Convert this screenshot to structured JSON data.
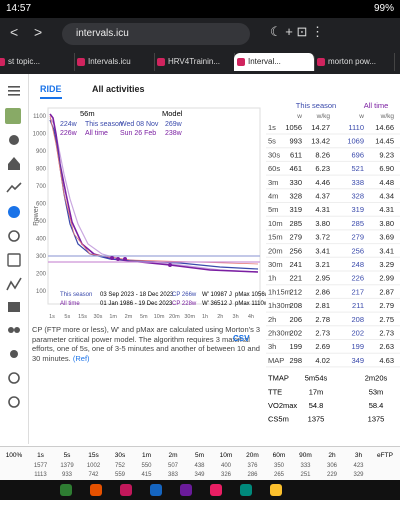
{
  "status": {
    "time": "14:57",
    "battery": "99%"
  },
  "browser": {
    "url": "intervals.icu",
    "tabs": [
      "st topic...",
      "Intervals.icu",
      "HRV4Trainin...",
      "Interval...",
      "morton pow..."
    ]
  },
  "nav": {
    "ride": "RIDE",
    "filter": "All activities"
  },
  "chart": {
    "duration": "56m",
    "model": "Model",
    "season_line": [
      "224w",
      "This season",
      "Wed 08 Nov",
      "269w"
    ],
    "alltime_line": [
      "226w",
      "All time",
      "Sun 26 Feb",
      "238w"
    ],
    "y_label": "Power",
    "y_ticks": [
      "1100",
      "1000",
      "900",
      "800",
      "700",
      "600",
      "500",
      "400",
      "300",
      "200",
      "100"
    ],
    "x_ticks": [
      "1s",
      "5s",
      "15s",
      "30s",
      "1m",
      "2m",
      "5m",
      "10m",
      "20m",
      "30m",
      "1h",
      "2h",
      "3h",
      "4h"
    ],
    "legend": [
      {
        "name": "This season",
        "dates": "03 Sep 2023 - 18 Dec 2023",
        "cp": "CP 266w",
        "w": "W' 10987 J",
        "pmax": "pMax 1056w"
      },
      {
        "name": "All time",
        "dates": "01 Jan 1986 - 19 Dec 2023",
        "cp": "CP 228w",
        "w": "W' 36512 J",
        "pmax": "pMax 1110w"
      }
    ]
  },
  "note": {
    "text": "CP (FTP more or less), W' and pMax are calculated using Morton's 3 parameter critical power model. The algorithm requires 3 maximal efforts, one of 5s, one of 3-5 minutes and another of between 10 and 30 minutes.",
    "ref": "(Ref)",
    "csv": "CSV"
  },
  "table": {
    "headers": [
      "This season",
      "All time"
    ],
    "units": [
      "w",
      "w/kg",
      "w",
      "w/kg"
    ],
    "rows": [
      [
        "1s",
        "1056",
        "14.27",
        "1110",
        "14.66"
      ],
      [
        "5s",
        "993",
        "13.42",
        "1069",
        "14.45"
      ],
      [
        "30s",
        "611",
        "8.26",
        "696",
        "9.23"
      ],
      [
        "60s",
        "461",
        "6.23",
        "521",
        "6.90"
      ],
      [
        "3m",
        "330",
        "4.46",
        "338",
        "4.48"
      ],
      [
        "4m",
        "328",
        "4.37",
        "328",
        "4.34"
      ],
      [
        "5m",
        "319",
        "4.31",
        "319",
        "4.31"
      ],
      [
        "10m",
        "285",
        "3.80",
        "285",
        "3.80"
      ],
      [
        "15m",
        "279",
        "3.72",
        "279",
        "3.69"
      ],
      [
        "20m",
        "256",
        "3.41",
        "256",
        "3.41"
      ],
      [
        "30m",
        "241",
        "3.21",
        "248",
        "3.29"
      ],
      [
        "1h",
        "221",
        "2.95",
        "226",
        "2.99"
      ],
      [
        "1h15m",
        "212",
        "2.86",
        "217",
        "2.87"
      ],
      [
        "1h30m",
        "208",
        "2.81",
        "211",
        "2.79"
      ],
      [
        "2h",
        "206",
        "2.78",
        "208",
        "2.75"
      ],
      [
        "2h30m",
        "202",
        "2.73",
        "202",
        "2.73"
      ],
      [
        "3h",
        "199",
        "2.69",
        "199",
        "2.63"
      ],
      [
        "MAP",
        "298",
        "4.02",
        "349",
        "4.63"
      ]
    ],
    "summary": [
      [
        "TMAP",
        "5m54s",
        "2m20s"
      ],
      [
        "TTE",
        "17m",
        "53m"
      ],
      [
        "VO2max",
        "54.8",
        "58.4"
      ],
      [
        "CS5m",
        "1375",
        "1375"
      ]
    ]
  },
  "strip": {
    "headers": [
      "100%",
      "1s",
      "5s",
      "15s",
      "30s",
      "1m",
      "2m",
      "5m",
      "10m",
      "20m",
      "60m",
      "90m",
      "2h",
      "3h",
      "eFTP"
    ],
    "rows": [
      [
        "1577",
        "1379",
        "1002",
        "752",
        "550",
        "507",
        "438",
        "400",
        "376",
        "350",
        "333",
        "306",
        "423"
      ],
      [
        "1113",
        "933",
        "742",
        "559",
        "415",
        "383",
        "349",
        "326",
        "286",
        "265",
        "251",
        "229",
        "329"
      ]
    ]
  }
}
